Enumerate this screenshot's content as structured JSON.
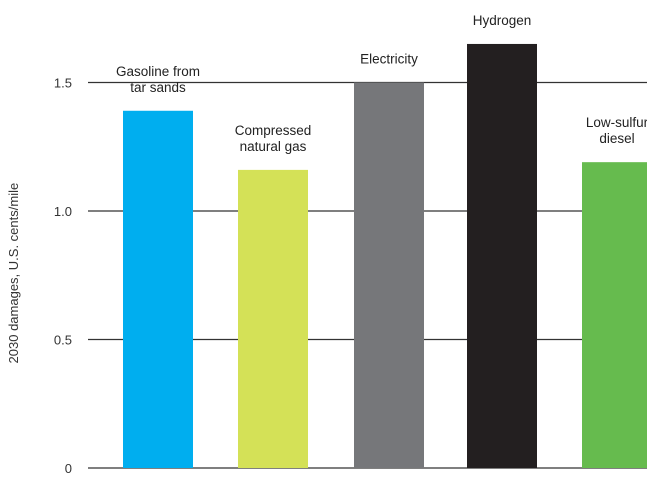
{
  "chart_data": {
    "type": "bar",
    "categories": [
      "Gasoline from tar sands",
      "Compressed natural gas",
      "Electricity",
      "Hydrogen",
      "Low-sulfur diesel"
    ],
    "category_label_lines": [
      [
        "Gasoline from",
        "tar sands"
      ],
      [
        "Compressed",
        "natural gas"
      ],
      [
        "Electricity"
      ],
      [
        "Hydrogen"
      ],
      [
        "Low-sulfur",
        "diesel"
      ]
    ],
    "values": [
      1.39,
      1.16,
      1.5,
      1.65,
      1.19
    ],
    "colors": [
      "#00aeef",
      "#d4e157",
      "#76777a",
      "#231f20",
      "#66bb4e"
    ],
    "title": "",
    "xlabel": "",
    "ylabel": "2030 damages, U.S. cents/mile",
    "ylim": [
      0,
      1.75
    ],
    "yticks": [
      0,
      0.5,
      1.0,
      1.5
    ],
    "ytick_labels": [
      "0",
      "0.5",
      "1.0",
      "1.5"
    ],
    "grid": "horizontal",
    "legend": "none"
  }
}
